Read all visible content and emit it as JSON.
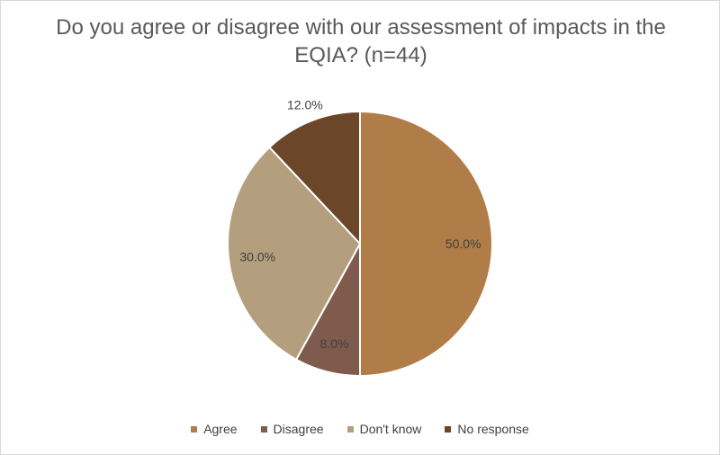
{
  "chart_data": {
    "type": "pie",
    "title": "Do you agree or disagree with our assessment of impacts in the EQIA? (n=44)",
    "categories": [
      "Agree",
      "Disagree",
      "Don't know",
      "No response"
    ],
    "values": [
      50.0,
      8.0,
      30.0,
      12.0
    ],
    "data_labels": [
      "50.0%",
      "8.0%",
      "30.0%",
      "12.0%"
    ],
    "colors": [
      "#b07d48",
      "#7f5b4e",
      "#b39f7e",
      "#6b4629"
    ],
    "legend_position": "bottom"
  }
}
